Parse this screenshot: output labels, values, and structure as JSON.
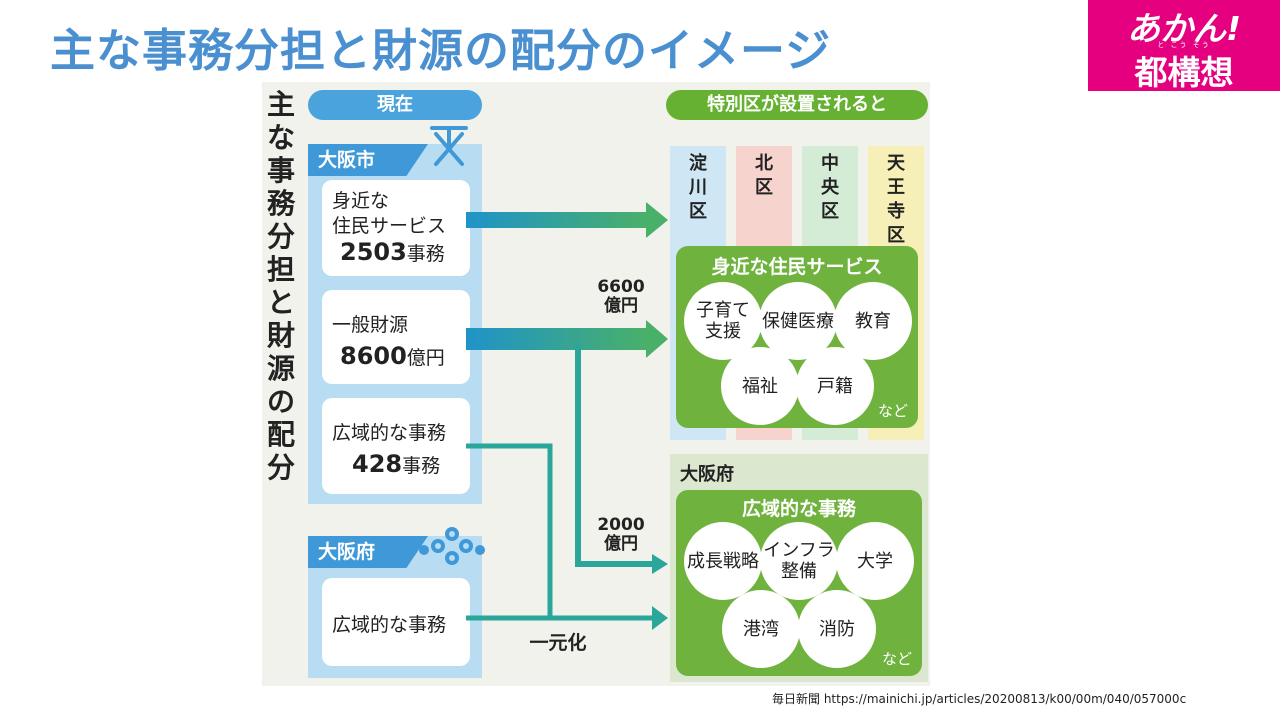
{
  "slide": {
    "title": "主な事務分担と財源の配分のイメージ",
    "brand_line1": "あかん!",
    "brand_ruby": "と こう そう",
    "brand_line2": "都構想",
    "citation": "毎日新聞 https://mainichi.jp/articles/20200813/k00/00m/040/057000c"
  },
  "figure": {
    "vertical_title": "主な事務分担と財源の配分",
    "current": {
      "label": "現在",
      "city": {
        "name": "大阪市",
        "services": {
          "line1": "身近な",
          "line2": "住民サービス",
          "amount": "2503",
          "unit": "事務"
        },
        "finance": {
          "line1": "一般財源",
          "amount": "8600",
          "unit": "億円"
        },
        "wide": {
          "line1": "広域的な事務",
          "amount": "428",
          "unit": "事務"
        }
      },
      "prefecture": {
        "name": "大阪府",
        "wide": "広域的な事務"
      }
    },
    "after": {
      "label": "特別区が設置されると",
      "wards": [
        "淀川区",
        "北区",
        "中央区",
        "天王寺区"
      ],
      "ward_colors": [
        "#cfe6f4",
        "#f6d3cd",
        "#d4ecd6",
        "#f6f0b8"
      ],
      "services": {
        "title": "身近な住民サービス",
        "items": [
          "子育て支援",
          "保健医療",
          "教育",
          "福祉",
          "戸籍"
        ],
        "etc": "など"
      },
      "prefecture": {
        "name": "大阪府",
        "title": "広域的な事務",
        "items": [
          "成長戦略",
          "インフラ整備",
          "大学",
          "港湾",
          "消防"
        ],
        "etc": "など"
      }
    },
    "flows": {
      "to_wards": "6600億円",
      "to_pref": "2000億円",
      "unify": "一元化"
    },
    "colors": {
      "green": "#66b132",
      "blue": "#3f98d8",
      "brand": "#e4007f",
      "title": "#4a90d0"
    }
  }
}
